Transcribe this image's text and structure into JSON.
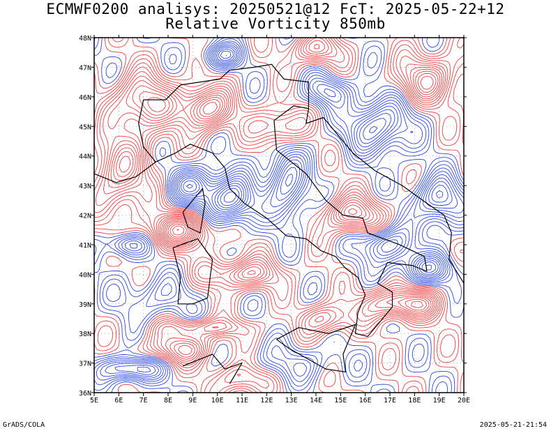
{
  "title": {
    "line1": "ECMWF0200 analisys: 20250521@12 FcT: 2025-05-22+12",
    "line2": "Relative Vorticity 850mb"
  },
  "map": {
    "lon_range": [
      5,
      20
    ],
    "lat_range": [
      36,
      48
    ],
    "lon_labels": [
      "5E",
      "6E",
      "7E",
      "8E",
      "9E",
      "10E",
      "11E",
      "12E",
      "13E",
      "14E",
      "15E",
      "16E",
      "17E",
      "18E",
      "19E",
      "20E"
    ],
    "lat_labels": [
      "36N",
      "37N",
      "38N",
      "39N",
      "40N",
      "41N",
      "42N",
      "43N",
      "44N",
      "45N",
      "46N",
      "47N",
      "48N"
    ],
    "colors": {
      "positive_vorticity": "#f03c3c",
      "negative_vorticity": "#2846e6",
      "coastline": "#000000",
      "grid": "#9a9a9a"
    }
  },
  "footer": {
    "left": "GrADS/COLA",
    "right": "2025-05-21-21:54"
  }
}
